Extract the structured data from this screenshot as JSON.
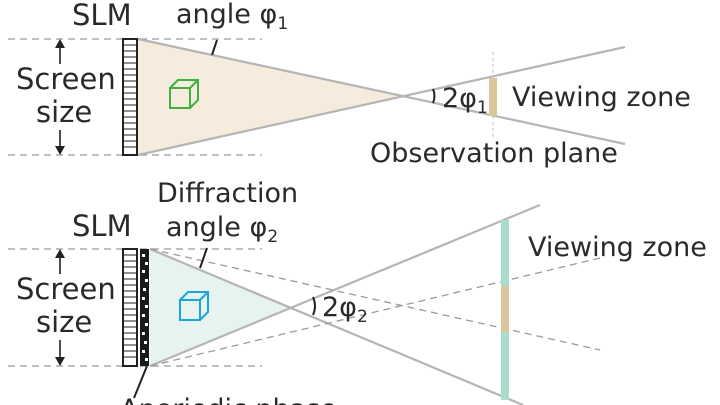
{
  "top_panel": {
    "slm_label": "SLM",
    "angle_label": "angle φ",
    "angle_sub": "1",
    "screen_label_line1": "Screen",
    "screen_label_line2": "size",
    "ratio_label": "2φ",
    "ratio_sub": "1",
    "viewing_zone_label": "Viewing zone",
    "observation_label": "Observation plane"
  },
  "bottom_panel": {
    "slm_label": "SLM",
    "diffraction_line1": "Diffraction",
    "diffraction_line2": "angle φ",
    "diffraction_sub": "2",
    "screen_label_line1": "Screen",
    "screen_label_line2": "size",
    "ratio_label": "2φ",
    "ratio_sub": "2",
    "viewing_zone_label": "Viewing zone",
    "footer_text": "Aperiodic phase"
  },
  "colors": {
    "top_cone_fill": "#f5ecdd",
    "bottom_cone_fill": "#e6f3ef",
    "top_cube": "#3cb043",
    "bottom_cube": "#1aa3e0",
    "zone_tan": "#d9c79a",
    "zone_mint": "#a8dccc"
  }
}
